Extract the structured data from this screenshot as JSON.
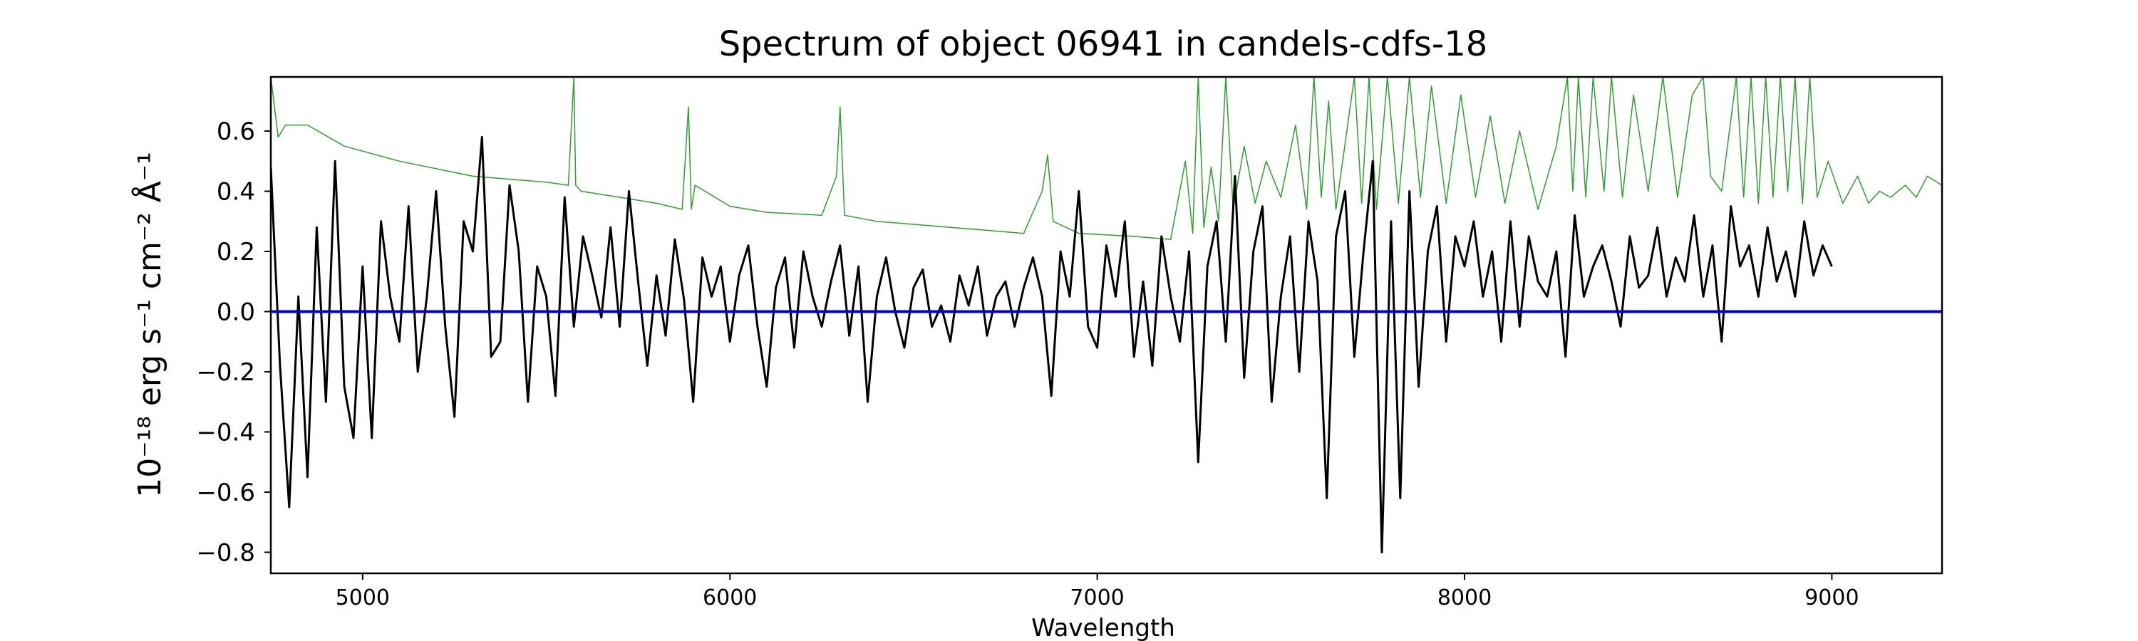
{
  "chart_data": {
    "type": "line",
    "title": "Spectrum of object 06941 in candels-cdfs-18",
    "xlabel": "Wavelength",
    "ylabel": "10⁻¹⁸ erg s⁻¹ cm⁻² Å⁻¹",
    "xlim": [
      4750,
      9300
    ],
    "ylim": [
      -0.87,
      0.78
    ],
    "x_ticks": [
      5000,
      6000,
      7000,
      8000,
      9000
    ],
    "y_ticks": [
      -0.8,
      -0.6,
      -0.4,
      -0.2,
      0.0,
      0.2,
      0.4,
      0.6
    ],
    "grid": false,
    "legend": "none",
    "series": [
      {
        "role": "flux",
        "color": "#000000",
        "x_start": 4750,
        "x_step": 25,
        "values": [
          0.48,
          -0.18,
          -0.65,
          0.05,
          -0.55,
          0.28,
          -0.3,
          0.5,
          -0.25,
          -0.42,
          0.15,
          -0.42,
          0.3,
          0.05,
          -0.1,
          0.35,
          -0.2,
          0.05,
          0.4,
          -0.05,
          -0.35,
          0.3,
          0.2,
          0.58,
          -0.15,
          -0.1,
          0.42,
          0.2,
          -0.3,
          0.15,
          0.05,
          -0.28,
          0.38,
          -0.05,
          0.25,
          0.12,
          -0.02,
          0.28,
          -0.05,
          0.4,
          0.1,
          -0.18,
          0.12,
          -0.08,
          0.24,
          0.04,
          -0.3,
          0.18,
          0.05,
          0.15,
          -0.1,
          0.12,
          0.22,
          -0.05,
          -0.25,
          0.08,
          0.18,
          -0.12,
          0.2,
          0.05,
          -0.05,
          0.1,
          0.22,
          -0.08,
          0.15,
          -0.3,
          0.05,
          0.18,
          0.0,
          -0.12,
          0.08,
          0.14,
          -0.05,
          0.02,
          -0.1,
          0.12,
          0.02,
          0.15,
          -0.08,
          0.05,
          0.1,
          -0.05,
          0.08,
          0.18,
          0.05,
          -0.28,
          0.2,
          0.05,
          0.4,
          -0.05,
          -0.12,
          0.22,
          0.05,
          0.3,
          -0.15,
          0.1,
          -0.18,
          0.25,
          0.05,
          -0.1,
          0.2,
          -0.5,
          0.15,
          0.3,
          -0.1,
          0.45,
          -0.22,
          0.2,
          0.35,
          -0.3,
          0.05,
          0.25,
          -0.2,
          0.3,
          0.1,
          -0.62,
          0.25,
          0.4,
          -0.15,
          0.2,
          0.5,
          -0.8,
          0.3,
          -0.62,
          0.4,
          -0.25,
          0.2,
          0.35,
          -0.1,
          0.25,
          0.15,
          0.3,
          0.05,
          0.2,
          -0.1,
          0.3,
          -0.05,
          0.25,
          0.1,
          0.05,
          0.2,
          -0.15,
          0.32,
          0.05,
          0.15,
          0.22,
          0.1,
          -0.05,
          0.25,
          0.08,
          0.12,
          0.28,
          0.05,
          0.18,
          0.1,
          0.32,
          0.05,
          0.22,
          -0.1,
          0.35,
          0.15,
          0.22,
          0.05,
          0.28,
          0.1,
          0.2,
          0.05,
          0.3,
          0.12,
          0.22,
          0.15
        ]
      },
      {
        "role": "error",
        "color": "#2ca02c",
        "x": [
          4750,
          4770,
          4790,
          4850,
          4950,
          5100,
          5300,
          5500,
          5560,
          5575,
          5580,
          5595,
          5700,
          5800,
          5870,
          5887,
          5895,
          5905,
          6000,
          6100,
          6250,
          6290,
          6300,
          6312,
          6400,
          6500,
          6600,
          6700,
          6800,
          6850,
          6865,
          6880,
          6950,
          7100,
          7200,
          7240,
          7260,
          7275,
          7290,
          7310,
          7330,
          7350,
          7370,
          7400,
          7430,
          7460,
          7500,
          7540,
          7570,
          7590,
          7610,
          7630,
          7650,
          7700,
          7720,
          7740,
          7760,
          7790,
          7820,
          7850,
          7880,
          7910,
          7950,
          7990,
          8030,
          8070,
          8110,
          8150,
          8200,
          8250,
          8280,
          8295,
          8310,
          8330,
          8350,
          8380,
          8400,
          8430,
          8460,
          8500,
          8540,
          8580,
          8620,
          8650,
          8670,
          8700,
          8740,
          8760,
          8780,
          8800,
          8820,
          8840,
          8860,
          8880,
          8900,
          8920,
          8940,
          8960,
          8990,
          9030,
          9070,
          9100,
          9130,
          9160,
          9200,
          9230,
          9260,
          9300
        ],
        "values": [
          0.78,
          0.58,
          0.62,
          0.62,
          0.55,
          0.5,
          0.45,
          0.43,
          0.42,
          0.78,
          0.42,
          0.4,
          0.38,
          0.36,
          0.34,
          0.68,
          0.34,
          0.42,
          0.35,
          0.33,
          0.32,
          0.45,
          0.68,
          0.32,
          0.3,
          0.29,
          0.28,
          0.27,
          0.26,
          0.4,
          0.52,
          0.3,
          0.26,
          0.25,
          0.24,
          0.5,
          0.26,
          0.78,
          0.28,
          0.48,
          0.3,
          0.78,
          0.34,
          0.55,
          0.36,
          0.5,
          0.38,
          0.62,
          0.34,
          0.78,
          0.38,
          0.7,
          0.34,
          0.78,
          0.36,
          0.78,
          0.34,
          0.78,
          0.36,
          0.78,
          0.38,
          0.75,
          0.36,
          0.72,
          0.38,
          0.65,
          0.36,
          0.6,
          0.34,
          0.55,
          0.78,
          0.4,
          0.78,
          0.38,
          0.78,
          0.4,
          0.78,
          0.38,
          0.72,
          0.4,
          0.78,
          0.38,
          0.72,
          0.78,
          0.45,
          0.4,
          0.78,
          0.38,
          0.78,
          0.36,
          0.78,
          0.38,
          0.78,
          0.4,
          0.78,
          0.36,
          0.78,
          0.38,
          0.5,
          0.36,
          0.45,
          0.36,
          0.4,
          0.38,
          0.42,
          0.38,
          0.45,
          0.42
        ]
      },
      {
        "role": "zero",
        "color": "#0000cc",
        "x": [
          4750,
          9300
        ],
        "values": [
          0.0,
          0.0
        ]
      }
    ]
  }
}
